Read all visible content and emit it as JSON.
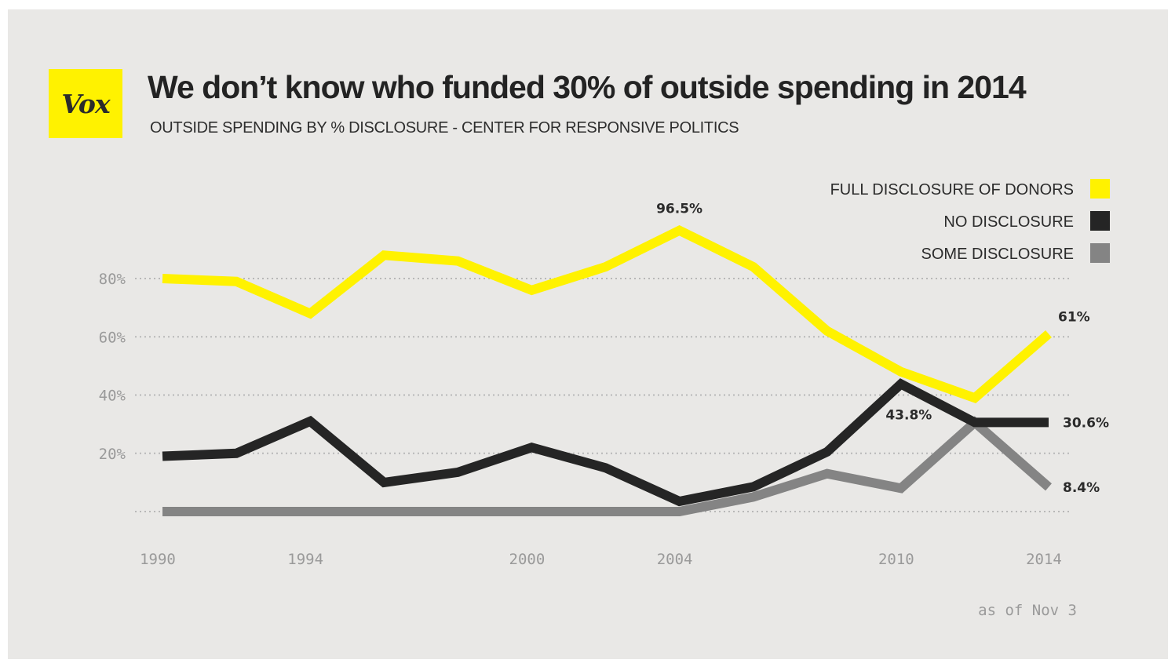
{
  "header": {
    "logo_text": "Vox",
    "title": "We don’t know who funded 30% of outside spending in 2014",
    "subtitle": "OUTSIDE SPENDING BY % DISCLOSURE - CENTER FOR RESPONSIVE POLITICS"
  },
  "footnote": "as of Nov 3",
  "chart_data": {
    "type": "line",
    "title": "We don’t know who funded 30% of outside spending in 2014",
    "subtitle": "OUTSIDE SPENDING BY % DISCLOSURE - CENTER FOR RESPONSIVE POLITICS",
    "xlabel": "",
    "ylabel": "",
    "x": [
      1990,
      1992,
      1994,
      1996,
      1998,
      2000,
      2002,
      2004,
      2006,
      2008,
      2010,
      2012,
      2014
    ],
    "xlim": [
      1990,
      2014
    ],
    "ylim": [
      0,
      80
    ],
    "x_ticks": [
      1990,
      1994,
      2000,
      2004,
      2010,
      2014
    ],
    "x_tick_labels": [
      "1990",
      "1994",
      "2000",
      "2004",
      "2010",
      "2014"
    ],
    "y_ticks": [
      20,
      40,
      60,
      80
    ],
    "y_tick_labels": [
      "20%",
      "40%",
      "60%",
      "80%"
    ],
    "grid": "horizontal dotted",
    "legend_position": "top-right",
    "series": [
      {
        "name": "FULL DISCLOSURE OF DONORS",
        "color": "#fff200",
        "values": [
          80,
          79,
          68,
          88,
          86,
          76,
          84,
          96.5,
          84,
          62,
          48,
          39,
          61
        ]
      },
      {
        "name": "NO DISCLOSURE",
        "color": "#252525",
        "values": [
          19,
          20,
          31,
          10,
          13.5,
          22,
          15,
          3.5,
          8.5,
          20.5,
          43.8,
          30.6,
          30.6
        ]
      },
      {
        "name": "SOME DISCLOSURE",
        "color": "#848484",
        "values": [
          0,
          0,
          0,
          0,
          0,
          0,
          0,
          0,
          5,
          13,
          8,
          30.6,
          8.4
        ]
      }
    ],
    "annotations": [
      {
        "text": "96.5%",
        "series": 0,
        "index": 7,
        "position": "above"
      },
      {
        "text": "61%",
        "series": 0,
        "index": 12,
        "position": "above-right"
      },
      {
        "text": "43.8%",
        "series": 1,
        "index": 10,
        "position": "below"
      },
      {
        "text": "30.6%",
        "series": 1,
        "index": 12,
        "position": "right"
      },
      {
        "text": "8.4%",
        "series": 2,
        "index": 12,
        "position": "right"
      }
    ]
  }
}
